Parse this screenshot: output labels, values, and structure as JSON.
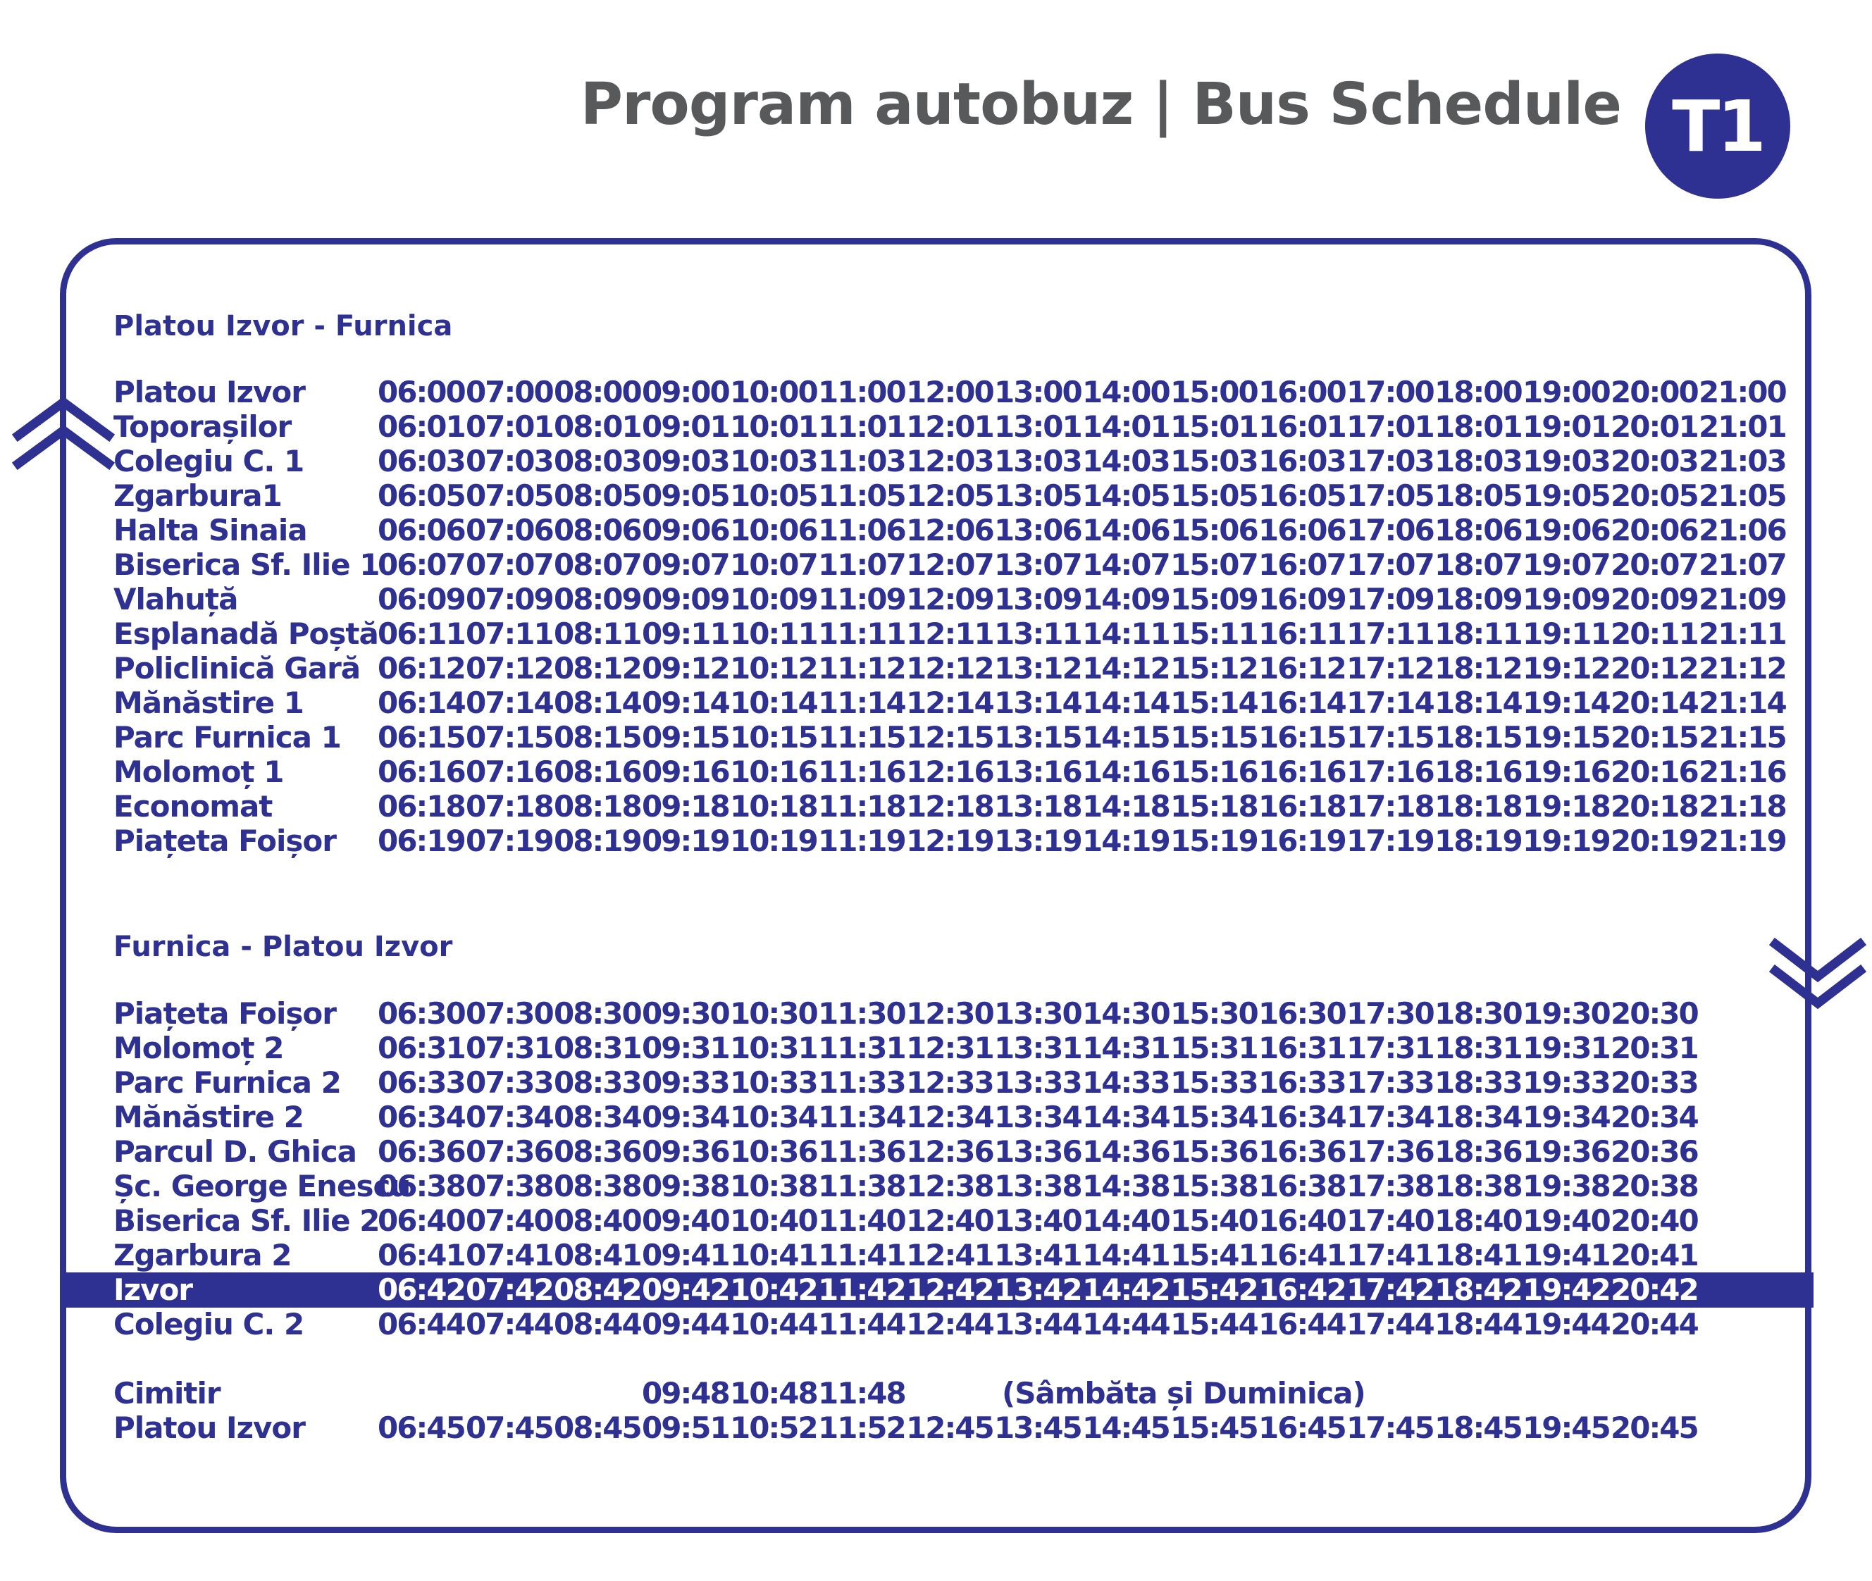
{
  "header": {
    "title": "Program autobuz | Bus Schedule",
    "badge": "T1"
  },
  "colors": {
    "primary": "#2e3192",
    "title_gray": "#58595b",
    "background": "#ffffff"
  },
  "icons": {
    "up": "double-chevron-up-icon",
    "down": "double-chevron-down-icon"
  },
  "sections": [
    {
      "title": "Platou Izvor - Furnica",
      "rows": [
        {
          "stop": "Platou Izvor",
          "times": [
            "06:00",
            "07:00",
            "08:00",
            "09:00",
            "10:00",
            "11:00",
            "12:00",
            "13:00",
            "14:00",
            "15:00",
            "16:00",
            "17:00",
            "18:00",
            "19:00",
            "20:00",
            "21:00"
          ]
        },
        {
          "stop": "Toporașilor",
          "times": [
            "06:01",
            "07:01",
            "08:01",
            "09:01",
            "10:01",
            "11:01",
            "12:01",
            "13:01",
            "14:01",
            "15:01",
            "16:01",
            "17:01",
            "18:01",
            "19:01",
            "20:01",
            "21:01"
          ]
        },
        {
          "stop": "Colegiu C. 1",
          "times": [
            "06:03",
            "07:03",
            "08:03",
            "09:03",
            "10:03",
            "11:03",
            "12:03",
            "13:03",
            "14:03",
            "15:03",
            "16:03",
            "17:03",
            "18:03",
            "19:03",
            "20:03",
            "21:03"
          ]
        },
        {
          "stop": "Zgarbura1",
          "times": [
            "06:05",
            "07:05",
            "08:05",
            "09:05",
            "10:05",
            "11:05",
            "12:05",
            "13:05",
            "14:05",
            "15:05",
            "16:05",
            "17:05",
            "18:05",
            "19:05",
            "20:05",
            "21:05"
          ]
        },
        {
          "stop": "Halta Sinaia",
          "times": [
            "06:06",
            "07:06",
            "08:06",
            "09:06",
            "10:06",
            "11:06",
            "12:06",
            "13:06",
            "14:06",
            "15:06",
            "16:06",
            "17:06",
            "18:06",
            "19:06",
            "20:06",
            "21:06"
          ]
        },
        {
          "stop": "Biserica Sf. Ilie 1",
          "times": [
            "06:07",
            "07:07",
            "08:07",
            "09:07",
            "10:07",
            "11:07",
            "12:07",
            "13:07",
            "14:07",
            "15:07",
            "16:07",
            "17:07",
            "18:07",
            "19:07",
            "20:07",
            "21:07"
          ]
        },
        {
          "stop": "Vlahuță",
          "times": [
            "06:09",
            "07:09",
            "08:09",
            "09:09",
            "10:09",
            "11:09",
            "12:09",
            "13:09",
            "14:09",
            "15:09",
            "16:09",
            "17:09",
            "18:09",
            "19:09",
            "20:09",
            "21:09"
          ]
        },
        {
          "stop": "Esplanadă Poștă",
          "times": [
            "06:11",
            "07:11",
            "08:11",
            "09:11",
            "10:11",
            "11:11",
            "12:11",
            "13:11",
            "14:11",
            "15:11",
            "16:11",
            "17:11",
            "18:11",
            "19:11",
            "20:11",
            "21:11"
          ]
        },
        {
          "stop": "Policlinică Gară",
          "times": [
            "06:12",
            "07:12",
            "08:12",
            "09:12",
            "10:12",
            "11:12",
            "12:12",
            "13:12",
            "14:12",
            "15:12",
            "16:12",
            "17:12",
            "18:12",
            "19:12",
            "20:12",
            "21:12"
          ]
        },
        {
          "stop": "Mănăstire 1",
          "times": [
            "06:14",
            "07:14",
            "08:14",
            "09:14",
            "10:14",
            "11:14",
            "12:14",
            "13:14",
            "14:14",
            "15:14",
            "16:14",
            "17:14",
            "18:14",
            "19:14",
            "20:14",
            "21:14"
          ]
        },
        {
          "stop": "Parc Furnica 1",
          "times": [
            "06:15",
            "07:15",
            "08:15",
            "09:15",
            "10:15",
            "11:15",
            "12:15",
            "13:15",
            "14:15",
            "15:15",
            "16:15",
            "17:15",
            "18:15",
            "19:15",
            "20:15",
            "21:15"
          ]
        },
        {
          "stop": "Molomoț 1",
          "times": [
            "06:16",
            "07:16",
            "08:16",
            "09:16",
            "10:16",
            "11:16",
            "12:16",
            "13:16",
            "14:16",
            "15:16",
            "16:16",
            "17:16",
            "18:16",
            "19:16",
            "20:16",
            "21:16"
          ]
        },
        {
          "stop": "Economat",
          "times": [
            "06:18",
            "07:18",
            "08:18",
            "09:18",
            "10:18",
            "11:18",
            "12:18",
            "13:18",
            "14:18",
            "15:18",
            "16:18",
            "17:18",
            "18:18",
            "19:18",
            "20:18",
            "21:18"
          ]
        },
        {
          "stop": "Piațeta Foișor",
          "times": [
            "06:19",
            "07:19",
            "08:19",
            "09:19",
            "10:19",
            "11:19",
            "12:19",
            "13:19",
            "14:19",
            "15:19",
            "16:19",
            "17:19",
            "18:19",
            "19:19",
            "20:19",
            "21:19"
          ]
        }
      ]
    },
    {
      "title": "Furnica - Platou Izvor",
      "rows": [
        {
          "stop": "Piațeta Foișor",
          "times": [
            "06:30",
            "07:30",
            "08:30",
            "09:30",
            "10:30",
            "11:30",
            "12:30",
            "13:30",
            "14:30",
            "15:30",
            "16:30",
            "17:30",
            "18:30",
            "19:30",
            "20:30"
          ]
        },
        {
          "stop": "Molomoț 2",
          "times": [
            "06:31",
            "07:31",
            "08:31",
            "09:31",
            "10:31",
            "11:31",
            "12:31",
            "13:31",
            "14:31",
            "15:31",
            "16:31",
            "17:31",
            "18:31",
            "19:31",
            "20:31"
          ]
        },
        {
          "stop": "Parc Furnica 2",
          "times": [
            "06:33",
            "07:33",
            "08:33",
            "09:33",
            "10:33",
            "11:33",
            "12:33",
            "13:33",
            "14:33",
            "15:33",
            "16:33",
            "17:33",
            "18:33",
            "19:33",
            "20:33"
          ]
        },
        {
          "stop": "Mănăstire 2",
          "times": [
            "06:34",
            "07:34",
            "08:34",
            "09:34",
            "10:34",
            "11:34",
            "12:34",
            "13:34",
            "14:34",
            "15:34",
            "16:34",
            "17:34",
            "18:34",
            "19:34",
            "20:34"
          ]
        },
        {
          "stop": "Parcul D. Ghica",
          "times": [
            "06:36",
            "07:36",
            "08:36",
            "09:36",
            "10:36",
            "11:36",
            "12:36",
            "13:36",
            "14:36",
            "15:36",
            "16:36",
            "17:36",
            "18:36",
            "19:36",
            "20:36"
          ]
        },
        {
          "stop": "Șc. George Enescu",
          "times": [
            "06:38",
            "07:38",
            "08:38",
            "09:38",
            "10:38",
            "11:38",
            "12:38",
            "13:38",
            "14:38",
            "15:38",
            "16:38",
            "17:38",
            "18:38",
            "19:38",
            "20:38"
          ]
        },
        {
          "stop": "Biserica Sf. Ilie 2",
          "times": [
            "06:40",
            "07:40",
            "08:40",
            "09:40",
            "10:40",
            "11:40",
            "12:40",
            "13:40",
            "14:40",
            "15:40",
            "16:40",
            "17:40",
            "18:40",
            "19:40",
            "20:40"
          ]
        },
        {
          "stop": "Zgarbura 2",
          "times": [
            "06:41",
            "07:41",
            "08:41",
            "09:41",
            "10:41",
            "11:41",
            "12:41",
            "13:41",
            "14:41",
            "15:41",
            "16:41",
            "17:41",
            "18:41",
            "19:41",
            "20:41"
          ]
        },
        {
          "stop": "Izvor",
          "highlight": true,
          "times": [
            "06:42",
            "07:42",
            "08:42",
            "09:42",
            "10:42",
            "11:42",
            "12:42",
            "13:42",
            "14:42",
            "15:42",
            "16:42",
            "17:42",
            "18:42",
            "19:42",
            "20:42"
          ]
        },
        {
          "stop": "Colegiu C. 2",
          "times": [
            "06:44",
            "07:44",
            "08:44",
            "09:44",
            "10:44",
            "11:44",
            "12:44",
            "13:44",
            "14:44",
            "15:44",
            "16:44",
            "17:44",
            "18:44",
            "19:44",
            "20:44"
          ]
        },
        {
          "stop": "Cimitir",
          "times": [
            "",
            "",
            "",
            "09:48",
            "10:48",
            "11:48"
          ],
          "note": "(Sâmbăta și Duminica)"
        },
        {
          "stop": "Platou Izvor",
          "times": [
            "06:45",
            "07:45",
            "08:45",
            "09:51",
            "10:52",
            "11:52",
            "12:45",
            "13:45",
            "14:45",
            "15:45",
            "16:45",
            "17:45",
            "18:45",
            "19:45",
            "20:45"
          ]
        }
      ]
    }
  ]
}
